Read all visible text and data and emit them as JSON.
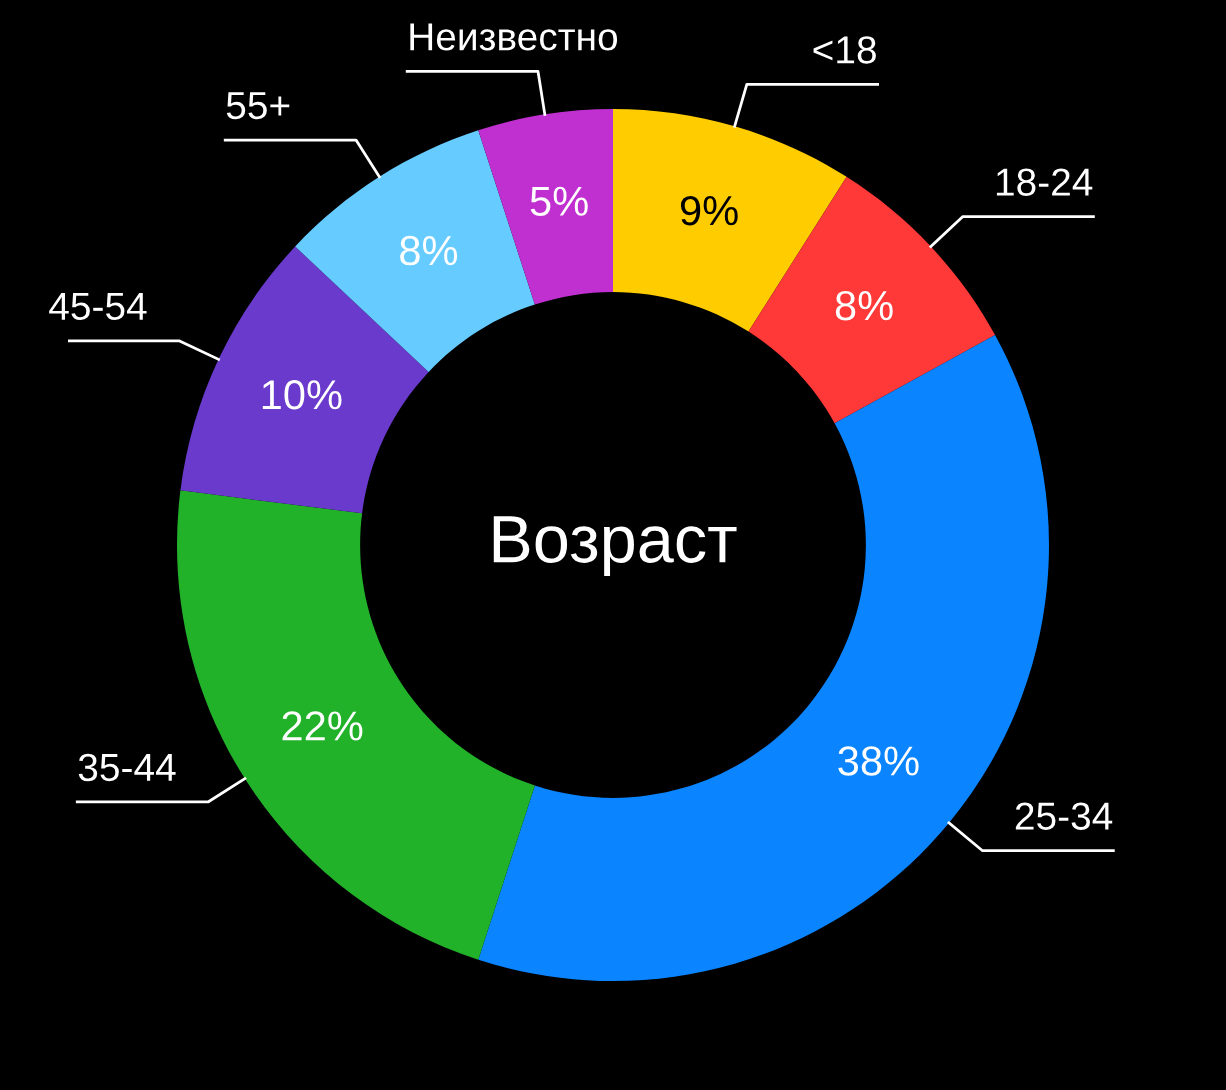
{
  "chart_data": {
    "type": "donut",
    "title": "Возраст",
    "categories": [
      "<18",
      "18-24",
      "25-34",
      "35-44",
      "45-54",
      "55+",
      "Неизвестно"
    ],
    "values": [
      9,
      8,
      38,
      22,
      10,
      8,
      5
    ],
    "colors": [
      "#ffcc00",
      "#ff3838",
      "#0a84ff",
      "#22b22a",
      "#6a3acc",
      "#66ccff",
      "#c030d0"
    ],
    "value_labels": [
      "9%",
      "8%",
      "38%",
      "22%",
      "10%",
      "8%",
      "5%"
    ],
    "legend": false
  }
}
